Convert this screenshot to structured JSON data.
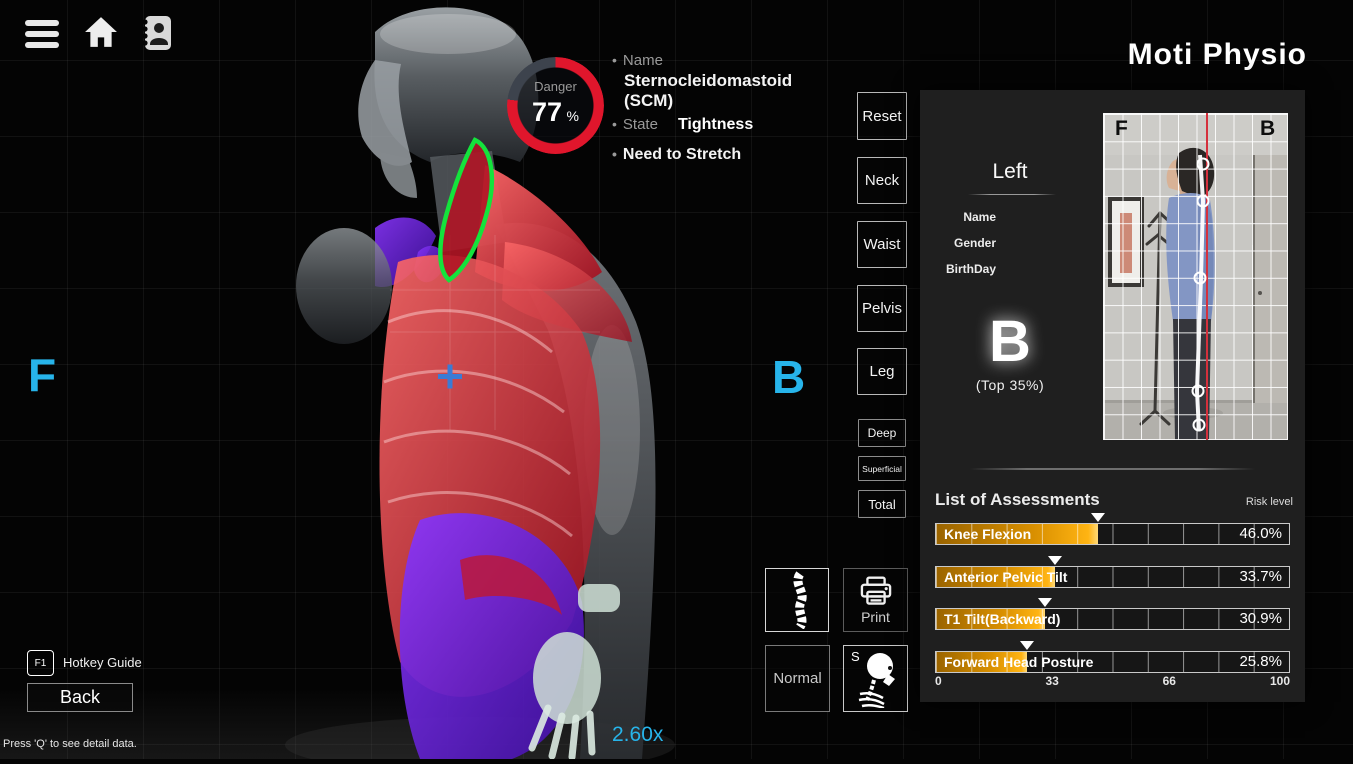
{
  "header": {
    "brand": "Moti Physio",
    "icons": [
      "menu-icon",
      "home-icon",
      "contacts-icon"
    ]
  },
  "viewer": {
    "front_label": "F",
    "back_label": "B",
    "zoom_level": "2.60x",
    "gauge": {
      "label": "Danger",
      "value": 77,
      "unit": "%",
      "ring_color": "#e0162c",
      "track_color": "#3d434d"
    },
    "muscle": {
      "name_label": "Name",
      "name": "Sternocleidomastoid (SCM)",
      "state_label": "State",
      "state": "Tightness",
      "note": "Need to Stretch"
    }
  },
  "buttons": {
    "view": [
      "Reset",
      "Neck",
      "Waist",
      "Pelvis",
      "Leg"
    ],
    "layer": [
      "Deep",
      "Superficial",
      "Total"
    ]
  },
  "tools": {
    "print_label": "Print",
    "normal_label": "Normal",
    "skeleton_key": "S"
  },
  "footer": {
    "hotkey_key": "F1",
    "hotkey_label": "Hotkey Guide",
    "back_label": "Back",
    "hint": "Press 'Q' to see detail data."
  },
  "panel": {
    "side_label": "Left",
    "fields": [
      "Name",
      "Gender",
      "BirthDay"
    ],
    "grade": "B",
    "grade_note": "(Top 35%)",
    "photo": {
      "front_label": "F",
      "back_label": "B"
    }
  },
  "chart_data": {
    "type": "bar",
    "title": "List of Assessments",
    "risk_label": "Risk level",
    "orientation": "horizontal",
    "categories": [
      "Knee Flexion",
      "Anterior Pelvic Tilt",
      "T1 Tilt(Backward)",
      "Forward Head Posture"
    ],
    "values": [
      46.0,
      33.7,
      30.9,
      25.8
    ],
    "value_labels": [
      "46.0%",
      "33.7%",
      "30.9%",
      "25.8%"
    ],
    "xticks": [
      0,
      33,
      66,
      100
    ],
    "xlim": [
      0,
      100
    ],
    "bar_color": "#f2a005",
    "grid": true,
    "legend_position": "top-right"
  },
  "colors": {
    "accent_cyan": "#27b4ea",
    "danger_red": "#e0162c",
    "risk_orange": "#f2a005"
  }
}
